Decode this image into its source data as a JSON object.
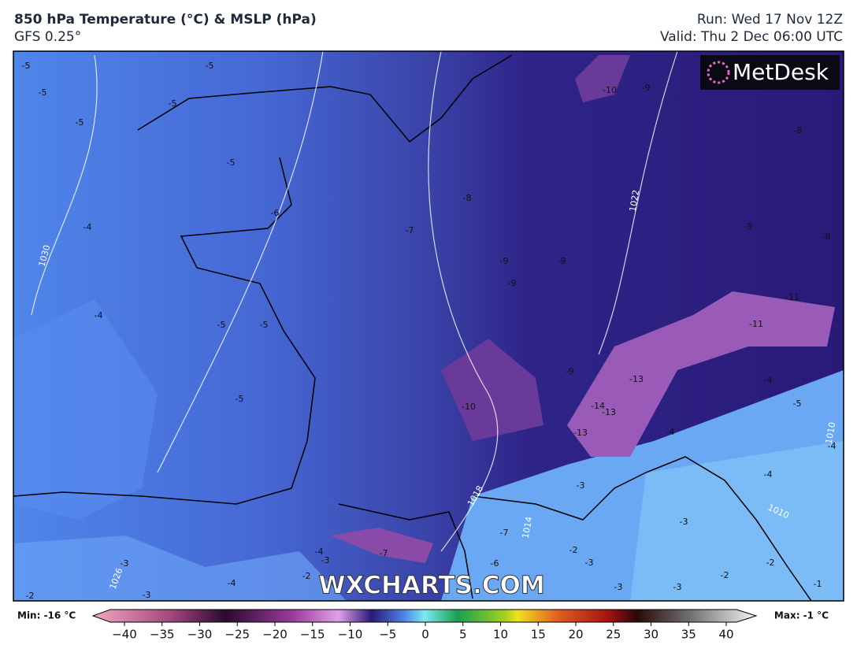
{
  "header": {
    "title": "850 hPa Temperature (°C) & MSLP (hPa)",
    "model": "GFS 0.25°",
    "run": "Run: Wed 17 Nov 12Z",
    "valid": "Valid: Thu 2 Dec 06:00 UTC"
  },
  "logo": "MetDesk",
  "watermark": "WXCHARTS.COM",
  "temperature_labels": [
    -5,
    -5,
    -5,
    -5,
    -5,
    -5,
    -4,
    -4,
    -5,
    -5,
    -5,
    -6,
    -7,
    -8,
    -9,
    -9,
    -9,
    -9,
    -9,
    -10,
    -8,
    -9,
    -8,
    -11,
    -11,
    -10,
    -14,
    -13,
    -13,
    -13,
    -4,
    -4,
    -5,
    -4,
    -4,
    -3,
    -7,
    -3,
    -2,
    -3,
    -6,
    -3,
    -3,
    -2,
    -2,
    -1,
    -3,
    -3,
    -4,
    -2,
    -4,
    -3,
    -7,
    -2
  ],
  "isobar_labels": [
    1030,
    1022,
    1018,
    1014,
    1010,
    1010,
    1026
  ],
  "colorbar": {
    "min_label": "Min: -16 °C",
    "max_label": "Max: -1 °C",
    "ticks": [
      {
        "value": -40,
        "label": "−40"
      },
      {
        "value": -35,
        "label": "−35"
      },
      {
        "value": -30,
        "label": "−30"
      },
      {
        "value": -25,
        "label": "−25"
      },
      {
        "value": -20,
        "label": "−20"
      },
      {
        "value": -15,
        "label": "−15"
      },
      {
        "value": -10,
        "label": "−10"
      },
      {
        "value": -5,
        "label": "−5"
      },
      0,
      5,
      10,
      15,
      20,
      25,
      30,
      35,
      40
    ]
  }
}
